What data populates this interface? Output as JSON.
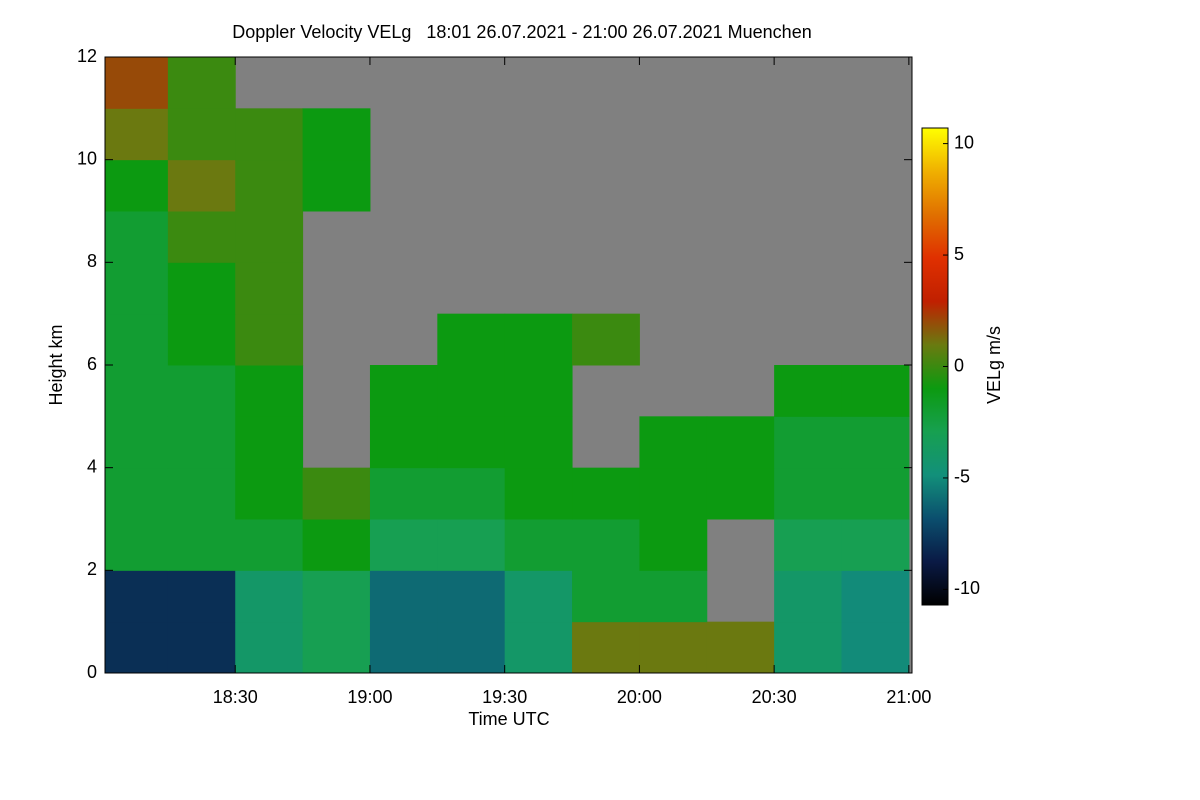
{
  "chart_data": {
    "type": "heatmap",
    "title": "Doppler Velocity VELg   18:01 26.07.2021 - 21:00 26.07.2021 Muenchen",
    "x_label": "Time UTC",
    "y_label": "Height km",
    "colorbar_label": "VELg m/s",
    "x_edges": [
      "18:01",
      "18:15",
      "18:30",
      "18:45",
      "19:00",
      "19:15",
      "19:30",
      "19:45",
      "20:00",
      "20:15",
      "20:30",
      "20:45",
      "21:00"
    ],
    "y_edges": [
      0,
      1,
      2,
      3,
      4,
      5,
      6,
      7,
      8,
      9,
      10,
      11,
      12
    ],
    "values": [
      [
        -8,
        -8,
        -4,
        -3,
        -6,
        -6,
        -4,
        1,
        1,
        1,
        -4,
        -5
      ],
      [
        -8,
        -8,
        -4,
        -3,
        -6,
        -6,
        -4,
        -2,
        -2,
        null,
        -4,
        -5
      ],
      [
        -2,
        -2,
        -2,
        -1,
        -3,
        -3,
        -2,
        -2,
        -1,
        null,
        -3,
        -3
      ],
      [
        -2,
        -2,
        -1,
        0,
        -2,
        -2,
        -1,
        -1,
        -1,
        -1,
        -2,
        -2
      ],
      [
        -2,
        -2,
        -1,
        null,
        -1,
        -1,
        -1,
        null,
        -1,
        -1,
        -2,
        -2
      ],
      [
        -2,
        -2,
        -1,
        null,
        -1,
        -1,
        -1,
        null,
        null,
        null,
        -1,
        -1
      ],
      [
        -2,
        -1,
        0,
        null,
        null,
        -1,
        -1,
        0,
        null,
        null,
        null,
        null
      ],
      [
        -2,
        -1,
        0,
        null,
        null,
        null,
        null,
        null,
        null,
        null,
        null,
        null
      ],
      [
        -2,
        0,
        0,
        null,
        null,
        null,
        null,
        null,
        null,
        null,
        null,
        null
      ],
      [
        -1,
        1,
        0,
        -1,
        null,
        null,
        null,
        null,
        null,
        null,
        null,
        null
      ],
      [
        1,
        0,
        0,
        -1,
        null,
        null,
        null,
        null,
        null,
        null,
        null,
        null
      ],
      [
        2,
        0,
        null,
        null,
        null,
        null,
        null,
        null,
        null,
        null,
        null,
        null
      ]
    ],
    "xlim": [
      "18:01",
      "21:00"
    ],
    "xticks": [
      "18:30",
      "19:00",
      "19:30",
      "20:00",
      "20:30",
      "21:00"
    ],
    "ylim": [
      0,
      12
    ],
    "yticks": [
      0,
      2,
      4,
      6,
      8,
      10,
      12
    ],
    "zlim": [
      -10.7,
      10.7
    ],
    "zticks": [
      10,
      5,
      0,
      -5,
      -10
    ],
    "missing_color": "#808080",
    "colorscale": [
      "#000000",
      "#0a1a45",
      "#0b4f6e",
      "#12907a",
      "#17a050",
      "#0c9a10",
      "#6a7a10",
      "#c02000",
      "#e03000",
      "#e07000",
      "#f0b000",
      "#ffff00"
    ]
  }
}
